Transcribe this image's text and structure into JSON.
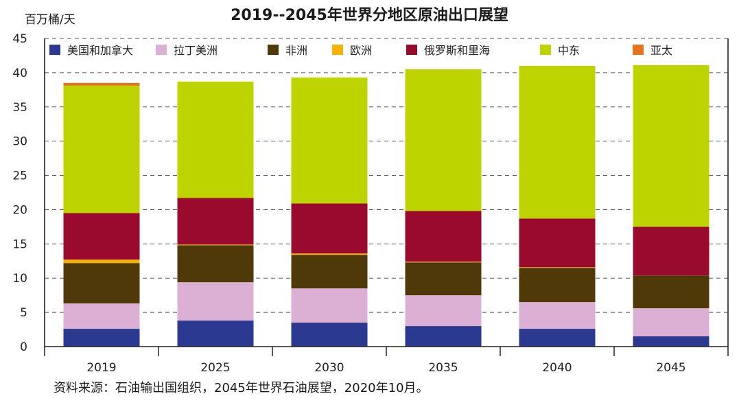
{
  "title": "2019--2045年世界分地区原油出口展望",
  "unit_label": "百万桶/天",
  "source": "资料来源：石油输出国组织，2045年世界石油展望，2020年10月。",
  "chart_data": {
    "type": "bar",
    "stacked": true,
    "title": "2019--2045年世界分地区原油出口展望",
    "ylabel": "百万桶/天",
    "xlabel": "",
    "ylim": [
      0,
      45
    ],
    "yticks": [
      0,
      5,
      10,
      15,
      20,
      25,
      30,
      35,
      40,
      45
    ],
    "grid": "horizontal dashed",
    "legend_position": "top",
    "categories": [
      "2019",
      "2025",
      "2030",
      "2035",
      "2040",
      "2045"
    ],
    "series": [
      {
        "name": "美国和加拿大",
        "color": "#2b3990",
        "values": [
          2.6,
          3.8,
          3.5,
          3.0,
          2.6,
          1.5
        ]
      },
      {
        "name": "拉丁美洲",
        "color": "#dcb0d4",
        "values": [
          3.7,
          5.6,
          5.0,
          4.5,
          3.9,
          4.1
        ]
      },
      {
        "name": "非洲",
        "color": "#4f3908",
        "values": [
          5.9,
          5.4,
          4.9,
          4.8,
          5.0,
          4.8
        ]
      },
      {
        "name": "欧洲",
        "color": "#f3b300",
        "values": [
          0.5,
          0.1,
          0.2,
          0.1,
          0.1,
          0.0
        ]
      },
      {
        "name": "俄罗斯和里海",
        "color": "#990a2e",
        "values": [
          6.8,
          6.8,
          7.3,
          7.4,
          7.1,
          7.1
        ]
      },
      {
        "name": "中东",
        "color": "#bdd400",
        "values": [
          18.6,
          17.0,
          18.4,
          20.7,
          22.3,
          23.6
        ]
      },
      {
        "name": "亚太",
        "color": "#e8731e",
        "values": [
          0.4,
          0.0,
          0.0,
          0.0,
          0.0,
          0.0
        ]
      }
    ]
  }
}
